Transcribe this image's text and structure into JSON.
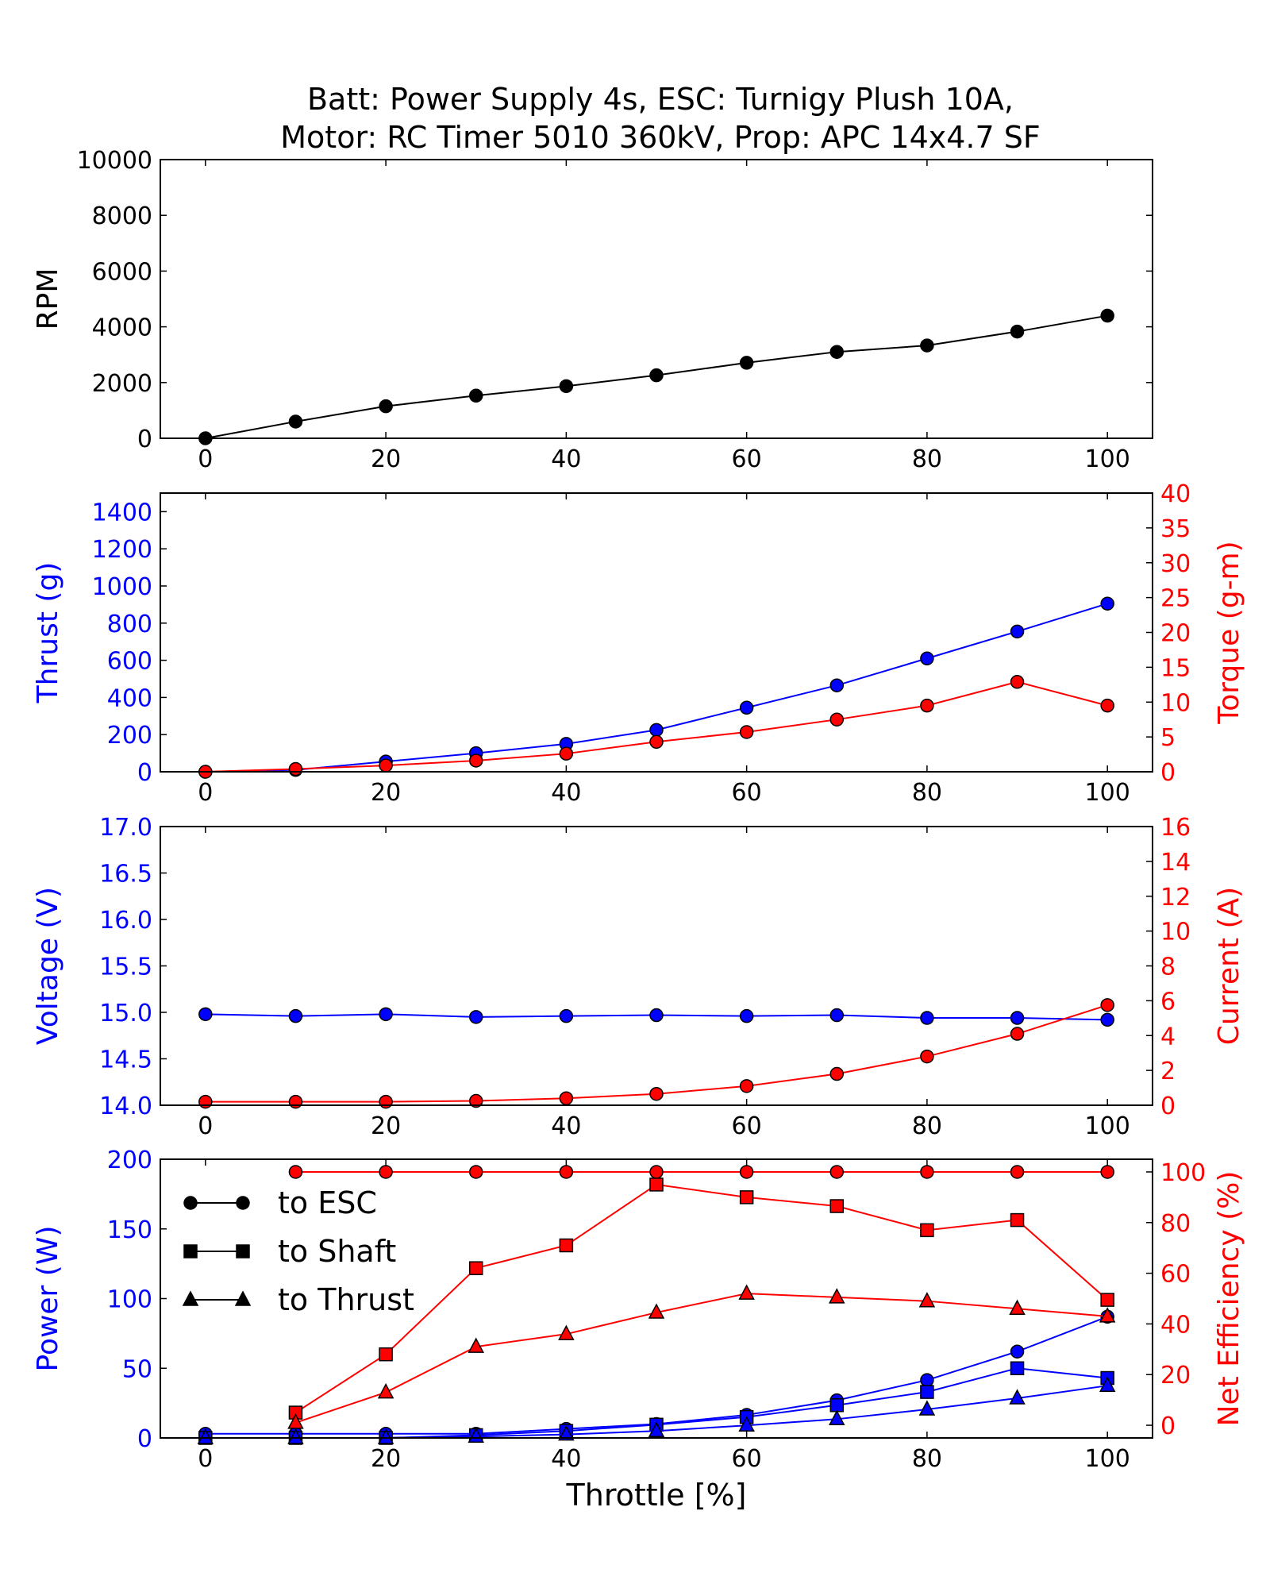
{
  "title_line1": "Batt: Power Supply 4s, ESC: Turnigy Plush 10A,",
  "title_line2": "Motor: RC Timer 5010 360kV, Prop: APC 14x4.7 SF",
  "colors": {
    "left": "#0000ff",
    "right": "#ff0000",
    "black": "#000000"
  },
  "chart_data": [
    {
      "type": "line",
      "x": [
        0,
        10,
        20,
        30,
        40,
        50,
        60,
        70,
        80,
        90,
        100
      ],
      "xlim": [
        -5,
        105
      ],
      "xticks": [
        "0",
        "20",
        "40",
        "60",
        "80",
        "100"
      ],
      "ylabel": "RPM",
      "ylim": [
        0,
        10000
      ],
      "yticks": [
        "0",
        "2000",
        "4000",
        "6000",
        "8000",
        "10000"
      ],
      "series": [
        {
          "values": [
            0,
            600,
            1150,
            1530,
            1870,
            2260,
            2710,
            3100,
            3330,
            3830,
            4400
          ],
          "marker": "circle",
          "color": "#000000"
        }
      ]
    },
    {
      "type": "line",
      "x": [
        0,
        10,
        20,
        30,
        40,
        50,
        60,
        70,
        80,
        90,
        100
      ],
      "xlim": [
        -5,
        105
      ],
      "xticks": [
        "0",
        "20",
        "40",
        "60",
        "80",
        "100"
      ],
      "ylabel": "Thrust (g)",
      "ylim": [
        0,
        1500
      ],
      "yticks": [
        "0",
        "200",
        "400",
        "600",
        "800",
        "1000",
        "1200",
        "1400"
      ],
      "y2label": "Torque (g-m)",
      "y2lim": [
        0,
        40
      ],
      "y2ticks": [
        "0",
        "5",
        "10",
        "15",
        "20",
        "25",
        "30",
        "35",
        "40"
      ],
      "series": [
        {
          "axis": "left",
          "values": [
            0,
            10,
            55,
            100,
            150,
            225,
            345,
            465,
            610,
            755,
            905
          ],
          "marker": "circle",
          "color": "#0000ff"
        },
        {
          "axis": "right",
          "values": [
            0,
            0.4,
            0.9,
            1.6,
            2.6,
            4.3,
            5.7,
            7.5,
            9.5,
            12.9,
            9.5
          ],
          "marker": "circle",
          "color": "#ff0000"
        }
      ]
    },
    {
      "type": "line",
      "x": [
        0,
        10,
        20,
        30,
        40,
        50,
        60,
        70,
        80,
        90,
        100
      ],
      "xlim": [
        -5,
        105
      ],
      "xticks": [
        "0",
        "20",
        "40",
        "60",
        "80",
        "100"
      ],
      "ylabel": "Voltage (V)",
      "ylim": [
        14.0,
        17.0
      ],
      "yticks": [
        "14.0",
        "14.5",
        "15.0",
        "15.5",
        "16.0",
        "16.5",
        "17.0"
      ],
      "y2label": "Current (A)",
      "y2lim": [
        0,
        16
      ],
      "y2ticks": [
        "0",
        "2",
        "4",
        "6",
        "8",
        "10",
        "12",
        "14",
        "16"
      ],
      "series": [
        {
          "axis": "left",
          "values": [
            14.98,
            14.96,
            14.98,
            14.95,
            14.96,
            14.97,
            14.96,
            14.97,
            14.94,
            14.94,
            14.92
          ],
          "marker": "circle",
          "color": "#0000ff"
        },
        {
          "axis": "right",
          "values": [
            0.2,
            0.2,
            0.2,
            0.25,
            0.4,
            0.65,
            1.1,
            1.8,
            2.8,
            4.1,
            5.75
          ],
          "marker": "circle",
          "color": "#ff0000"
        }
      ]
    },
    {
      "type": "line",
      "x": [
        0,
        10,
        20,
        30,
        40,
        50,
        60,
        70,
        80,
        90,
        100
      ],
      "xlim": [
        -5,
        105
      ],
      "xticks": [
        "0",
        "20",
        "40",
        "60",
        "80",
        "100"
      ],
      "xlabel": "Throttle [%]",
      "ylabel": "Power (W)",
      "ylim": [
        0,
        200
      ],
      "yticks": [
        "0",
        "50",
        "100",
        "150",
        "200"
      ],
      "y2label": "Net Efficiency (%)",
      "y2lim": [
        -5,
        105
      ],
      "y2ticks": [
        "0",
        "20",
        "40",
        "60",
        "80",
        "100"
      ],
      "legend": {
        "position": "top-left",
        "entries": [
          "to ESC",
          "to Shaft",
          "to Thrust"
        ]
      },
      "series": [
        {
          "axis": "left",
          "values": [
            3,
            3,
            3,
            3,
            6.5,
            10,
            16.5,
            27,
            41.5,
            62,
            87
          ],
          "marker": "circle",
          "color": "#0000ff"
        },
        {
          "axis": "left",
          "values": [
            0,
            0,
            0,
            2,
            5,
            9.5,
            15,
            23.5,
            33,
            50,
            43
          ],
          "marker": "square",
          "color": "#0000ff"
        },
        {
          "axis": "left",
          "values": [
            0,
            0,
            0,
            1,
            2.5,
            5,
            9,
            13.5,
            20.5,
            28.5,
            37.5
          ],
          "marker": "triangle",
          "color": "#0000ff"
        },
        {
          "axis": "right",
          "values": [
            null,
            100,
            100,
            100,
            100,
            100,
            100,
            100,
            100,
            100,
            100
          ],
          "marker": "circle",
          "color": "#ff0000"
        },
        {
          "axis": "right",
          "values": [
            null,
            5,
            28,
            62,
            71,
            95,
            90,
            86.5,
            77,
            81,
            49.5
          ],
          "marker": "square",
          "color": "#ff0000"
        },
        {
          "axis": "right",
          "values": [
            null,
            1,
            13,
            31,
            36,
            44.5,
            52,
            50.5,
            49,
            46,
            43
          ],
          "marker": "triangle",
          "color": "#ff0000"
        }
      ]
    }
  ]
}
